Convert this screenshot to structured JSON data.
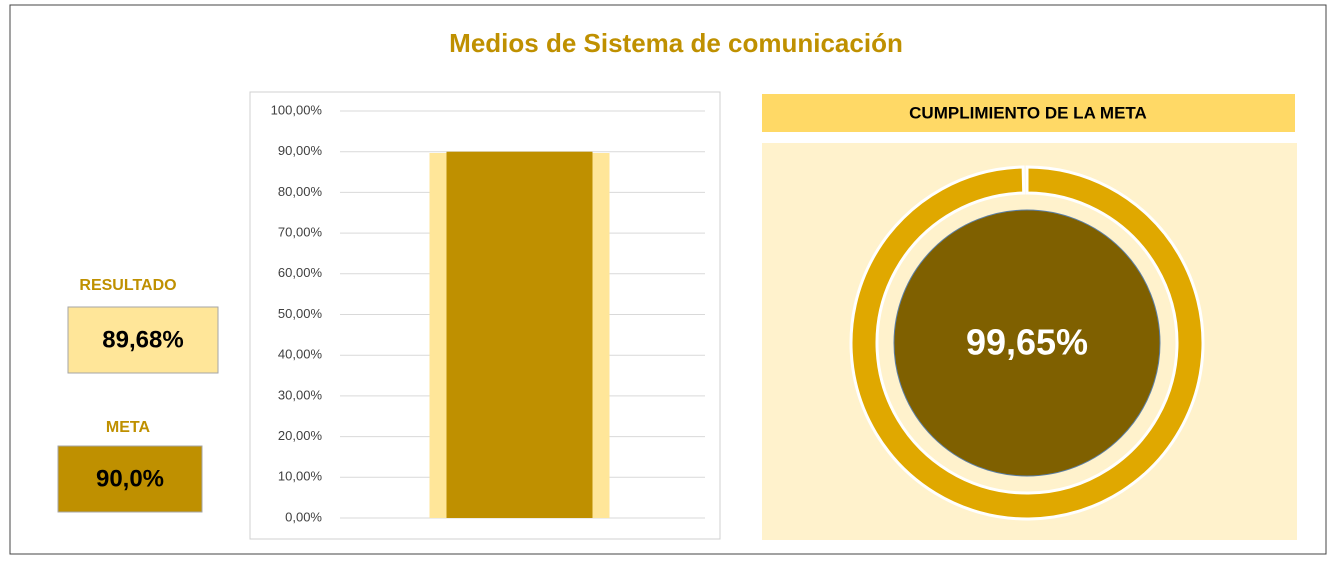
{
  "title": "Medios de Sistema de comunicación",
  "kpis": [
    {
      "label": "RESULTADO",
      "value_label": "89,68%"
    },
    {
      "label": "META",
      "value_label": "90,0%"
    }
  ],
  "chart_data": [
    {
      "type": "bar",
      "categories": [
        null
      ],
      "series": [
        {
          "color": "#ffe699",
          "values": [
            89.68
          ]
        },
        {
          "color": "#bf9000",
          "values": [
            90.0
          ]
        }
      ],
      "ylim": [
        0,
        100
      ],
      "yticks": [
        {
          "value": 0,
          "label": "0,00%"
        },
        {
          "value": 10,
          "label": "10,00%"
        },
        {
          "value": 20,
          "label": "20,00%"
        },
        {
          "value": 30,
          "label": "30,00%"
        },
        {
          "value": 40,
          "label": "40,00%"
        },
        {
          "value": 50,
          "label": "50,00%"
        },
        {
          "value": 60,
          "label": "60,00%"
        },
        {
          "value": 70,
          "label": "70,00%"
        },
        {
          "value": 80,
          "label": "80,00%"
        },
        {
          "value": 90,
          "label": "90,00%"
        },
        {
          "value": 100,
          "label": "100,00%"
        }
      ],
      "grid": true
    },
    {
      "type": "pie",
      "title": "CUMPLIMIENTO DE LA META",
      "values": [
        99.65
      ],
      "value_labels": [
        "99,65%"
      ],
      "colors": [
        "#e0a800"
      ]
    }
  ]
}
